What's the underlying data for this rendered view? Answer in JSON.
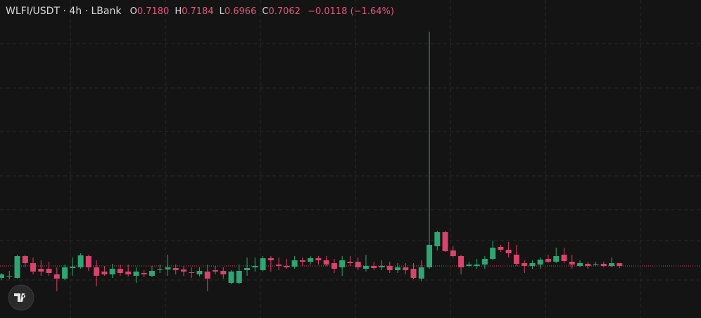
{
  "chart_data": {
    "type": "candlestick",
    "header": {
      "symbol": "WLFI/USDT · 4h · LBank",
      "fields": [
        {
          "label": "O",
          "value": "0.7180"
        },
        {
          "label": "H",
          "value": "0.7184"
        },
        {
          "label": "L",
          "value": "0.6966"
        },
        {
          "label": "C",
          "value": "0.7062"
        }
      ],
      "change": "−0.0118 (−1.64%)"
    },
    "up_color": "#2ea673",
    "down_color": "#d9436c",
    "open": [
      0.6552,
      0.6612,
      0.6552,
      0.7482,
      0.7182,
      0.6942,
      0.6942,
      0.6702,
      0.6522,
      0.6972,
      0.7002,
      0.7482,
      0.7002,
      0.6822,
      0.6702,
      0.6942,
      0.6822,
      0.6642,
      0.6762,
      0.6642,
      0.6882,
      0.6912,
      0.6972,
      0.6912,
      0.6792,
      0.6702,
      0.6822,
      0.6882,
      0.6852,
      0.6342,
      0.6342,
      0.6882,
      0.7002,
      0.6882,
      0.7392,
      0.7122,
      0.7062,
      0.7032,
      0.7302,
      0.7242,
      0.7392,
      0.7302,
      0.7182,
      0.7002,
      0.7242,
      0.7242,
      0.6942,
      0.7062,
      0.7002,
      0.7062,
      0.6882,
      0.7002,
      0.6942,
      0.6522,
      0.7002,
      0.7902,
      0.8502,
      0.7722,
      0.7482,
      0.7062,
      0.7062,
      0.7122,
      0.7362,
      0.7872,
      0.7752,
      0.7542,
      0.7182,
      0.7062,
      0.7122,
      0.7362,
      0.7242,
      0.7542,
      0.7242,
      0.7062,
      0.7152,
      0.7122,
      0.7152,
      0.7062,
      0.718
    ],
    "high": [
      0.6762,
      0.6852,
      0.7542,
      0.7542,
      0.7422,
      0.7302,
      0.7242,
      0.7002,
      0.7122,
      0.7422,
      0.7602,
      0.7542,
      0.7302,
      0.7062,
      0.7152,
      0.7122,
      0.7122,
      0.7002,
      0.6882,
      0.7062,
      0.7122,
      0.7542,
      0.7122,
      0.7062,
      0.7002,
      0.7002,
      0.7122,
      0.7062,
      0.7002,
      0.6882,
      0.7122,
      0.7422,
      0.7422,
      0.7482,
      0.7482,
      0.7422,
      0.7362,
      0.7482,
      0.7422,
      0.7482,
      0.7482,
      0.7482,
      0.7362,
      0.7482,
      0.7482,
      0.7422,
      0.7542,
      0.7242,
      0.7302,
      0.7242,
      0.7182,
      0.7182,
      0.7182,
      0.7302,
      1.7052,
      0.8562,
      0.8562,
      0.7902,
      0.7542,
      0.7242,
      0.7362,
      0.7482,
      0.8142,
      0.7962,
      0.8082,
      0.7962,
      0.7302,
      0.7302,
      0.7422,
      0.7542,
      0.7842,
      0.7842,
      0.7542,
      0.7302,
      0.7242,
      0.7242,
      0.7242,
      0.7422,
      0.7184
    ],
    "low": [
      0.6462,
      0.6492,
      0.6522,
      0.7002,
      0.6702,
      0.6642,
      0.6642,
      0.5982,
      0.6462,
      0.6642,
      0.6942,
      0.6852,
      0.6192,
      0.6642,
      0.6552,
      0.6642,
      0.6612,
      0.6342,
      0.6582,
      0.6582,
      0.6762,
      0.6642,
      0.6702,
      0.6642,
      0.6552,
      0.6612,
      0.5982,
      0.6702,
      0.6522,
      0.6282,
      0.6282,
      0.6642,
      0.6822,
      0.6822,
      0.6822,
      0.6882,
      0.6942,
      0.6942,
      0.7062,
      0.7122,
      0.7122,
      0.7062,
      0.6762,
      0.6642,
      0.7062,
      0.6882,
      0.6822,
      0.6882,
      0.6882,
      0.6762,
      0.6762,
      0.6702,
      0.6492,
      0.6402,
      0.6942,
      0.7722,
      0.7662,
      0.7422,
      0.6702,
      0.7002,
      0.6942,
      0.6942,
      0.7302,
      0.7662,
      0.7422,
      0.7062,
      0.6762,
      0.6942,
      0.6942,
      0.7182,
      0.7182,
      0.7182,
      0.6942,
      0.7002,
      0.6942,
      0.7062,
      0.7002,
      0.7002,
      0.6966
    ],
    "close": [
      0.6702,
      0.6642,
      0.7482,
      0.7182,
      0.6822,
      0.6822,
      0.6762,
      0.6522,
      0.7002,
      0.7032,
      0.7512,
      0.7002,
      0.6642,
      0.6702,
      0.6942,
      0.6762,
      0.6702,
      0.6822,
      0.6702,
      0.6852,
      0.6912,
      0.7002,
      0.6882,
      0.6822,
      0.6762,
      0.6852,
      0.6522,
      0.6822,
      0.6702,
      0.6822,
      0.6852,
      0.6972,
      0.7062,
      0.7392,
      0.7302,
      0.7062,
      0.7002,
      0.7302,
      0.7242,
      0.7392,
      0.7302,
      0.7122,
      0.6942,
      0.7302,
      0.7182,
      0.7002,
      0.7062,
      0.6972,
      0.7062,
      0.6882,
      0.7002,
      0.6882,
      0.6552,
      0.7002,
      0.7962,
      0.8502,
      0.7692,
      0.7482,
      0.7002,
      0.7122,
      0.7122,
      0.7362,
      0.7842,
      0.7752,
      0.7602,
      0.7152,
      0.7062,
      0.7182,
      0.7332,
      0.7242,
      0.7482,
      0.7272,
      0.7122,
      0.7182,
      0.7062,
      0.7152,
      0.7062,
      0.7182,
      0.7062
    ]
  }
}
